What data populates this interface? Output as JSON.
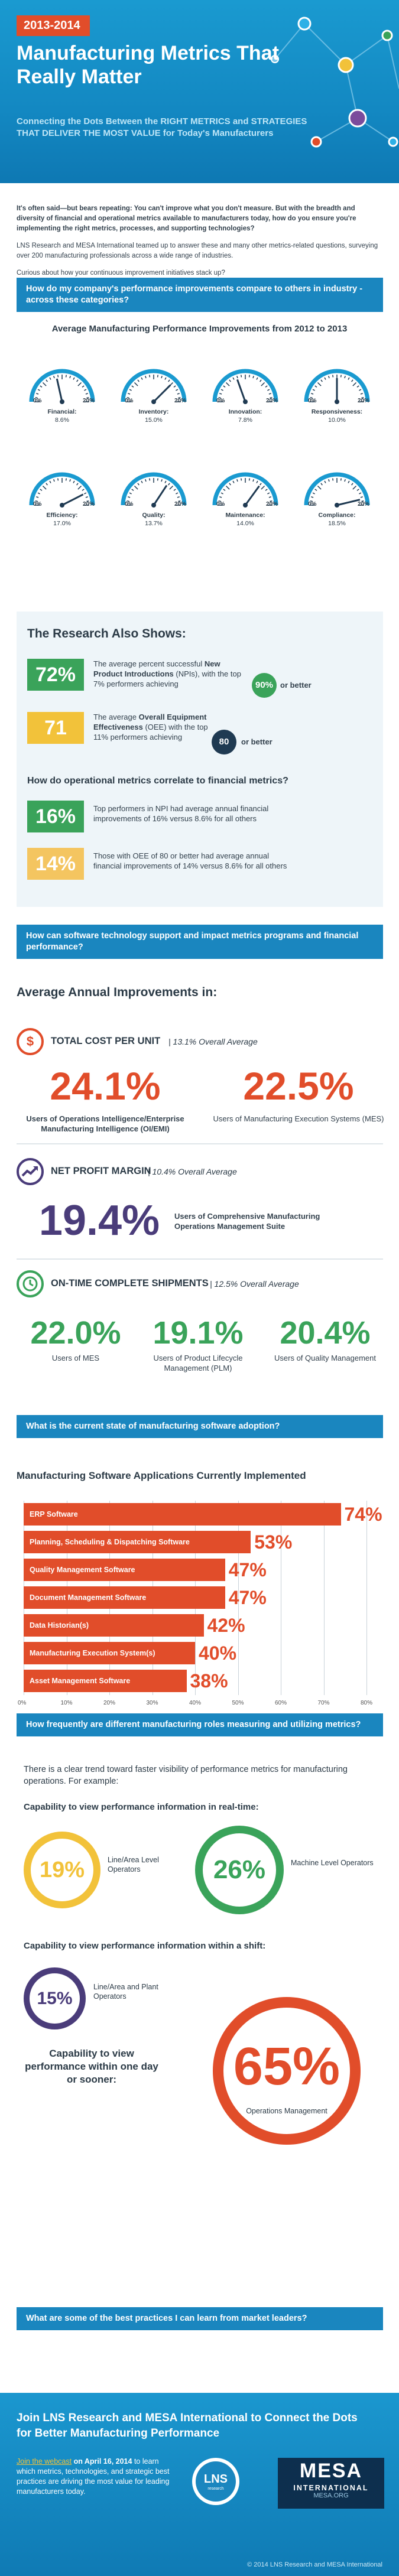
{
  "header": {
    "year": "2013-2014",
    "title": "Manufacturing Metrics That Really Matter",
    "subtitle": "Connecting the Dots Between the RIGHT METRICS and STRATEGIES THAT DELIVER THE MOST VALUE for Today's Manufacturers"
  },
  "intro": {
    "p1": "It's often said—but bears repeating: You can't improve what you don't measure. But with the breadth and diversity of financial and operational metrics available to manufacturers today, how do you ensure you're implementing the right metrics, processes, and supporting technologies?",
    "p2": "LNS Research and MESA International teamed up to answer these and many other metrics-related questions, surveying over 200 manufacturing professionals across a wide range of industries.",
    "p3": "Curious about how your continuous improvement initiatives stack up?"
  },
  "q1": "How do my company's performance improvements compare to others in industry - across these categories?",
  "gauges_title": "Average Manufacturing Performance Improvements from 2012 to 2013",
  "gauge_min": "0%",
  "gauge_max": "20%",
  "gauges": [
    {
      "label": "Financial:",
      "value": "8.6%",
      "level": 0.43
    },
    {
      "label": "Inventory:",
      "value": "15.0%",
      "level": 0.75
    },
    {
      "label": "Innovation:",
      "value": "7.8%",
      "level": 0.39
    },
    {
      "label": "Responsiveness:",
      "value": "10.0%",
      "level": 0.5
    },
    {
      "label": "Efficiency:",
      "value": "17.0%",
      "level": 0.85
    },
    {
      "label": "Quality:",
      "value": "13.7%",
      "level": 0.685
    },
    {
      "label": "Maintenance:",
      "value": "14.0%",
      "level": 0.7
    },
    {
      "label": "Compliance:",
      "value": "18.5%",
      "level": 0.925
    }
  ],
  "research": {
    "title": "The Research Also Shows:",
    "s1_value": "72%",
    "s1_text_a": "The average percent successful ",
    "s1_text_b": "New Product Introductions",
    "s1_text_c": " (NPIs), with the top 7% performers achieving",
    "s1_circle": "90%",
    "s1_after": "or better",
    "s2_value": "71",
    "s2_text_a": "The average ",
    "s2_text_b": "Overall Equipment Effectiveness",
    "s2_text_c": " (OEE) with the top 11% performers achieving",
    "s2_circle": "80",
    "s2_after": "or better",
    "sub": "How do operational metrics correlate to financial metrics?",
    "s3_value": "16%",
    "s3_text": "Top performers in NPI had average annual financial improvements of 16% versus 8.6% for all others",
    "s4_value": "14%",
    "s4_text": "Those with OEE of 80 or better had average annual financial improvements of 14% versus 8.6% for all others"
  },
  "q2": "How can software technology support and impact metrics programs and financial performance?",
  "improvements": {
    "title": "Average Annual Improvements in:",
    "c1_icon": "$",
    "c1_name": "TOTAL COST PER UNIT",
    "c1_avg": "13.1% Overall Average",
    "c1_a_value": "24.1%",
    "c1_a_text": "Users of Operations Intelligence/Enterprise Manufacturing Intelligence (OI/EMI)",
    "c1_b_value": "22.5%",
    "c1_b_text": "Users of Manufacturing Execution Systems (MES)",
    "c2_name": "NET PROFIT MARGIN",
    "c2_avg": "10.4% Overall Average",
    "c2_value": "19.4%",
    "c2_text": "Users of Comprehensive Manufacturing Operations Management Suite",
    "c3_name": "ON-TIME COMPLETE SHIPMENTS",
    "c3_avg": "12.5% Overall Average",
    "c3_a_value": "22.0%",
    "c3_a_text": "Users of MES",
    "c3_b_value": "19.1%",
    "c3_b_text": "Users of Product Lifecycle Management (PLM)",
    "c3_c_value": "20.4%",
    "c3_c_text": "Users of Quality Management"
  },
  "q3": "What is the current state of manufacturing software adoption?",
  "chart_data": {
    "type": "bar",
    "title": "Manufacturing Software Applications Currently Implemented",
    "categories": [
      "ERP Software",
      "Planning, Scheduling & Dispatching Software",
      "Quality Management Software",
      "Document Management Software",
      "Data Historian(s)",
      "Manufacturing Execution System(s)",
      "Asset Management Software"
    ],
    "values": [
      74,
      53,
      47,
      47,
      42,
      40,
      38
    ],
    "value_labels": [
      "74%",
      "53%",
      "47%",
      "47%",
      "42%",
      "40%",
      "38%"
    ],
    "xlim": [
      0,
      80
    ],
    "ticks": [
      "0%",
      "10%",
      "20%",
      "30%",
      "40%",
      "50%",
      "60%",
      "70%",
      "80%"
    ],
    "color": "#e14d2a"
  },
  "q4": "How frequently are different manufacturing roles measuring and utilizing metrics?",
  "roles": {
    "intro": "There is a clear trend toward faster visibility of performance metrics for manufacturing operations. For example:",
    "h1": "Capability to view performance information in real-time:",
    "r1_value": "19%",
    "r1_label": "Line/Area Level Operators",
    "r2_value": "26%",
    "r2_label": "Machine Level Operators",
    "h2": "Capability to view performance information within a shift:",
    "r3_value": "15%",
    "r3_label": "Line/Area and Plant Operators",
    "h3": "Capability to view performance within one day or sooner:",
    "r4_value": "65%",
    "r4_label": "Operations Management"
  },
  "q5": "What are some of the best practices I can learn from market leaders?",
  "footer": {
    "title": "Join LNS Research and MESA International to Connect the Dots for Better Manufacturing Performance",
    "link": "Join the webcast",
    "date": " on April 16, 2014",
    "body": " to learn which metrics, technologies, and strategic best practices are driving the most value for leading manufacturers today.",
    "lns": "LNS",
    "lns_small": "research",
    "mesa1": "MESA",
    "mesa2": "INTERNATIONAL",
    "mesa3": "MESA.ORG",
    "copyright": "© 2014 LNS Research and MESA International"
  }
}
